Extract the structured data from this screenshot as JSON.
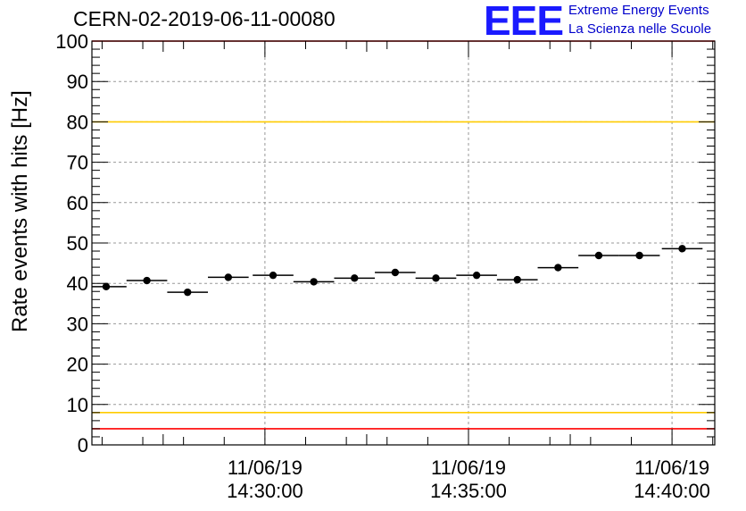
{
  "header": {
    "title": "CERN-02-2019-06-11-00080",
    "logo_text": "EEE",
    "logo_line1": "Extreme Energy Events",
    "logo_line2": "La Scienza nelle Scuole"
  },
  "colors": {
    "red_limit": "#ff0000",
    "yellow_limit": "#ffcc00",
    "logo_blue": "#1a1aff",
    "grid": "#999999"
  },
  "chart_data": {
    "type": "scatter",
    "title": "CERN-02-2019-06-11-00080",
    "xlabel": "",
    "ylabel": "Rate events with hits [Hz]",
    "ylim": [
      0,
      100
    ],
    "xlim_minutes_since_1430": [
      -4.25,
      11.05
    ],
    "grid": true,
    "yticks": [
      0,
      10,
      20,
      30,
      40,
      50,
      60,
      70,
      80,
      90,
      100
    ],
    "xticks": [
      {
        "date": "11/06/19",
        "time": "14:30:00",
        "minutes": 0
      },
      {
        "date": "11/06/19",
        "time": "14:35:00",
        "minutes": 5
      },
      {
        "date": "11/06/19",
        "time": "14:40:00",
        "minutes": 10
      }
    ],
    "hlines": [
      {
        "y": 100,
        "color": "#ff0000"
      },
      {
        "y": 80,
        "color": "#ffcc00"
      },
      {
        "y": 8,
        "color": "#ffcc00"
      },
      {
        "y": 4,
        "color": "#ff0000"
      }
    ],
    "points": [
      {
        "x": -3.9,
        "y": 39.2
      },
      {
        "x": -2.9,
        "y": 40.7
      },
      {
        "x": -1.9,
        "y": 37.8
      },
      {
        "x": -0.9,
        "y": 41.5
      },
      {
        "x": 0.2,
        "y": 42.0
      },
      {
        "x": 1.2,
        "y": 40.4
      },
      {
        "x": 2.2,
        "y": 41.3
      },
      {
        "x": 3.2,
        "y": 42.7
      },
      {
        "x": 4.2,
        "y": 41.3
      },
      {
        "x": 5.2,
        "y": 42.0
      },
      {
        "x": 6.2,
        "y": 40.9
      },
      {
        "x": 7.2,
        "y": 43.9
      },
      {
        "x": 8.2,
        "y": 46.9
      },
      {
        "x": 9.2,
        "y": 46.9
      },
      {
        "x": 10.25,
        "y": 48.6
      }
    ],
    "bin_halfwidth_minutes": 0.5
  }
}
